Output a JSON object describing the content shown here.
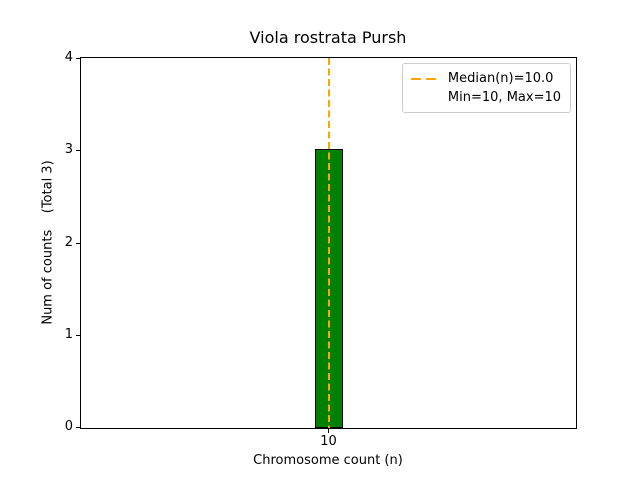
{
  "chart_data": {
    "type": "bar",
    "title": "Viola rostrata Pursh",
    "xlabel": "Chromosome count (n)",
    "ylabel": "Num of counts    (Total 3)",
    "categories": [
      "10"
    ],
    "values": [
      3
    ],
    "total": 3,
    "ylim": [
      0,
      4
    ],
    "yticks": [
      "0",
      "1",
      "2",
      "3",
      "4"
    ],
    "xticks": [
      "10"
    ],
    "bar_color": "#008000",
    "bar_edge_color": "#000000",
    "median_line": {
      "x": 10.0,
      "style": "dashed",
      "color": "#FFA500"
    },
    "grid": "off",
    "legend": {
      "position": "upper right",
      "entries": [
        {
          "label": "Median(n)=10.0",
          "sample": "orange-dashed-line"
        },
        {
          "label": "Min=10, Max=10",
          "sample": "none"
        }
      ]
    }
  }
}
